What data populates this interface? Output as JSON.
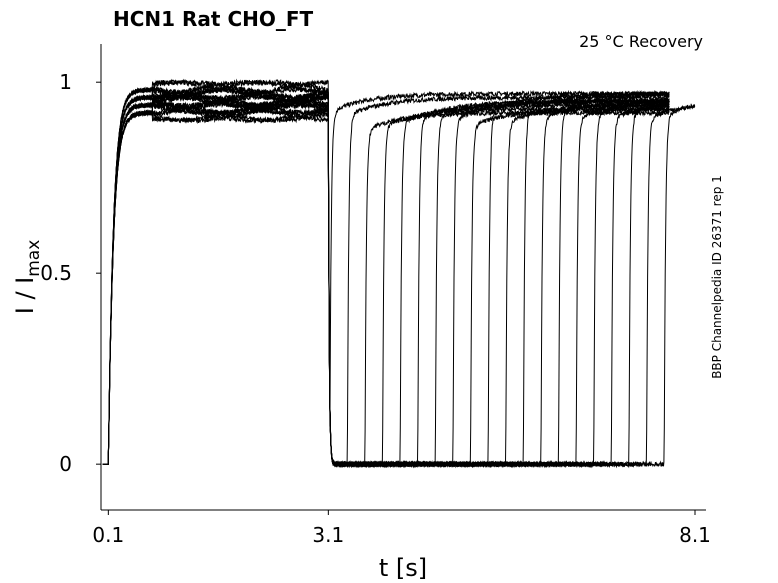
{
  "chart_data": {
    "type": "line",
    "title": "HCN1  Rat  CHO_FT",
    "annotation_top_right": "25 °C  Recovery",
    "side_label": "BBP Channelpedia ID 26371 rep 1",
    "xlabel": "t [s]",
    "ylabel_main": "I / I",
    "ylabel_sub": "max",
    "xlim": [
      0.0,
      8.25
    ],
    "ylim": [
      -0.12,
      1.1
    ],
    "xticks": [
      0.1,
      3.1,
      8.1
    ],
    "xtick_labels": [
      "0.1",
      "3.1",
      "8.1"
    ],
    "yticks": [
      0,
      0.5,
      1
    ],
    "ytick_labels": [
      "0",
      "0.5",
      "1"
    ],
    "grid": false,
    "legend": "none",
    "line_color": "#000000",
    "protocol": {
      "activation_start_s": 0.1,
      "deactivation_start_s": 3.1,
      "activation_plateaus": [
        0.98,
        0.96,
        0.94,
        0.92
      ],
      "recovery_step_start_s": 3.12,
      "recovery_step_interval_s": 0.24,
      "recovery_step_count": 20,
      "recovery_step_peaks": [
        0.97,
        0.96,
        0.92,
        0.93,
        0.94,
        0.95,
        0.95,
        0.95,
        0.93,
        0.97,
        0.94,
        0.97,
        0.95,
        0.97,
        0.95,
        0.96,
        0.95,
        0.96,
        0.95,
        0.96
      ],
      "sweep_end_s": [
        7.75,
        7.75,
        7.75,
        7.75,
        7.75,
        7.75,
        7.75,
        7.75,
        7.75,
        7.75,
        7.75,
        7.75,
        7.75,
        7.75,
        7.75,
        7.75,
        7.75,
        7.75,
        8.1,
        8.1
      ]
    }
  }
}
